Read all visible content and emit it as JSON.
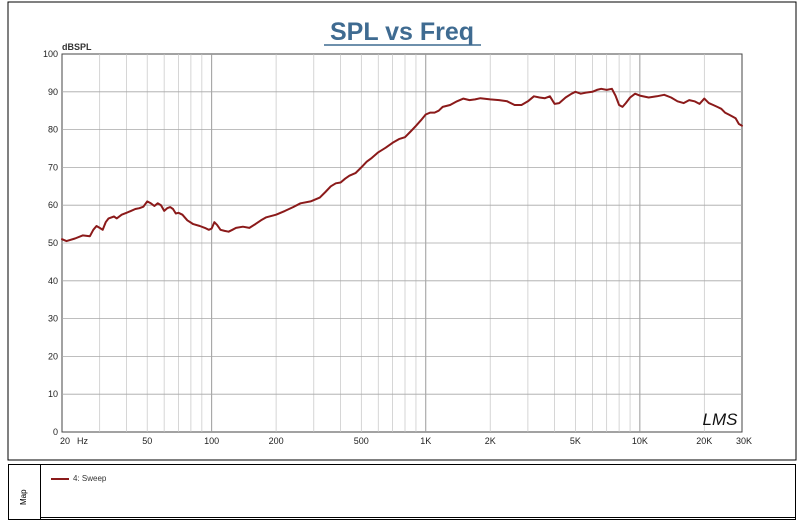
{
  "chart_data": {
    "type": "line",
    "title": "SPL vs Freq",
    "ylabel": "dBSPL",
    "xscale": "log",
    "xlim": [
      20,
      30000
    ],
    "ylim": [
      0,
      100
    ],
    "grid": true,
    "yticks": [
      "0",
      "10",
      "20",
      "30",
      "40",
      "50",
      "60",
      "70",
      "80",
      "90",
      "100"
    ],
    "xticks": [
      {
        "v": 20,
        "label": "20"
      },
      {
        "v": 50,
        "label": "50"
      },
      {
        "v": 100,
        "label": "100"
      },
      {
        "v": 200,
        "label": "200"
      },
      {
        "v": 500,
        "label": "500"
      },
      {
        "v": 1000,
        "label": "1K"
      },
      {
        "v": 2000,
        "label": "2K"
      },
      {
        "v": 5000,
        "label": "5K"
      },
      {
        "v": 10000,
        "label": "10K"
      },
      {
        "v": 20000,
        "label": "20K"
      },
      {
        "v": 30000,
        "label": "30K"
      }
    ],
    "xunit": "Hz",
    "watermark": "LMS",
    "series": [
      {
        "name": "4: Sweep",
        "color": "#8B1A1A",
        "points": [
          [
            20,
            51.0
          ],
          [
            21,
            50.5
          ],
          [
            23,
            51.2
          ],
          [
            25,
            52.0
          ],
          [
            27,
            51.8
          ],
          [
            28,
            53.5
          ],
          [
            29,
            54.5
          ],
          [
            30,
            54.0
          ],
          [
            31,
            53.5
          ],
          [
            32,
            55.5
          ],
          [
            33,
            56.5
          ],
          [
            35,
            57.0
          ],
          [
            36,
            56.5
          ],
          [
            38,
            57.5
          ],
          [
            40,
            58.0
          ],
          [
            42,
            58.5
          ],
          [
            44,
            59.0
          ],
          [
            46,
            59.2
          ],
          [
            48,
            59.6
          ],
          [
            50,
            61.0
          ],
          [
            52,
            60.5
          ],
          [
            54,
            59.8
          ],
          [
            56,
            60.5
          ],
          [
            58,
            60.0
          ],
          [
            60,
            58.5
          ],
          [
            62,
            59.2
          ],
          [
            64,
            59.5
          ],
          [
            66,
            59.0
          ],
          [
            68,
            57.8
          ],
          [
            70,
            58.0
          ],
          [
            73,
            57.5
          ],
          [
            77,
            56.0
          ],
          [
            82,
            55.0
          ],
          [
            88,
            54.5
          ],
          [
            93,
            54.0
          ],
          [
            97,
            53.5
          ],
          [
            100,
            53.8
          ],
          [
            103,
            55.5
          ],
          [
            106,
            54.8
          ],
          [
            110,
            53.5
          ],
          [
            115,
            53.2
          ],
          [
            120,
            53.0
          ],
          [
            125,
            53.5
          ],
          [
            130,
            54.0
          ],
          [
            140,
            54.3
          ],
          [
            150,
            54.0
          ],
          [
            160,
            55.0
          ],
          [
            170,
            56.0
          ],
          [
            180,
            56.8
          ],
          [
            200,
            57.5
          ],
          [
            220,
            58.5
          ],
          [
            240,
            59.5
          ],
          [
            260,
            60.5
          ],
          [
            290,
            61.0
          ],
          [
            320,
            62.0
          ],
          [
            340,
            63.5
          ],
          [
            360,
            65.0
          ],
          [
            380,
            65.8
          ],
          [
            400,
            66.0
          ],
          [
            420,
            67.0
          ],
          [
            440,
            67.8
          ],
          [
            470,
            68.5
          ],
          [
            500,
            70.0
          ],
          [
            530,
            71.5
          ],
          [
            560,
            72.5
          ],
          [
            600,
            74.0
          ],
          [
            650,
            75.2
          ],
          [
            700,
            76.5
          ],
          [
            750,
            77.5
          ],
          [
            800,
            78.0
          ],
          [
            850,
            79.5
          ],
          [
            900,
            81.0
          ],
          [
            950,
            82.5
          ],
          [
            1000,
            84.0
          ],
          [
            1050,
            84.5
          ],
          [
            1100,
            84.5
          ],
          [
            1150,
            85.0
          ],
          [
            1200,
            86.0
          ],
          [
            1300,
            86.5
          ],
          [
            1400,
            87.5
          ],
          [
            1500,
            88.2
          ],
          [
            1600,
            87.8
          ],
          [
            1700,
            88.0
          ],
          [
            1800,
            88.3
          ],
          [
            2000,
            88.0
          ],
          [
            2200,
            87.8
          ],
          [
            2400,
            87.5
          ],
          [
            2600,
            86.5
          ],
          [
            2800,
            86.5
          ],
          [
            3000,
            87.5
          ],
          [
            3200,
            88.8
          ],
          [
            3400,
            88.5
          ],
          [
            3600,
            88.3
          ],
          [
            3800,
            88.8
          ],
          [
            4000,
            86.8
          ],
          [
            4200,
            87.0
          ],
          [
            4500,
            88.5
          ],
          [
            4800,
            89.5
          ],
          [
            5000,
            90.0
          ],
          [
            5300,
            89.5
          ],
          [
            5600,
            89.8
          ],
          [
            6000,
            90.0
          ],
          [
            6300,
            90.5
          ],
          [
            6600,
            90.8
          ],
          [
            7000,
            90.5
          ],
          [
            7400,
            90.8
          ],
          [
            7700,
            89.0
          ],
          [
            8000,
            86.5
          ],
          [
            8300,
            86.0
          ],
          [
            8600,
            87.0
          ],
          [
            9000,
            88.5
          ],
          [
            9500,
            89.5
          ],
          [
            10000,
            89.0
          ],
          [
            11000,
            88.5
          ],
          [
            12000,
            88.8
          ],
          [
            13000,
            89.2
          ],
          [
            14000,
            88.5
          ],
          [
            15000,
            87.5
          ],
          [
            16000,
            87.0
          ],
          [
            17000,
            87.8
          ],
          [
            18000,
            87.5
          ],
          [
            19000,
            86.8
          ],
          [
            20000,
            88.2
          ],
          [
            21000,
            87.0
          ],
          [
            22000,
            86.5
          ],
          [
            23000,
            86.0
          ],
          [
            24000,
            85.5
          ],
          [
            25000,
            84.5
          ],
          [
            26000,
            84.0
          ],
          [
            27000,
            83.5
          ],
          [
            28000,
            83.0
          ],
          [
            29000,
            81.5
          ],
          [
            30000,
            81.0
          ]
        ]
      }
    ]
  },
  "legend_panel": {
    "tab_label": "Map",
    "entry_label": "4: Sweep"
  }
}
